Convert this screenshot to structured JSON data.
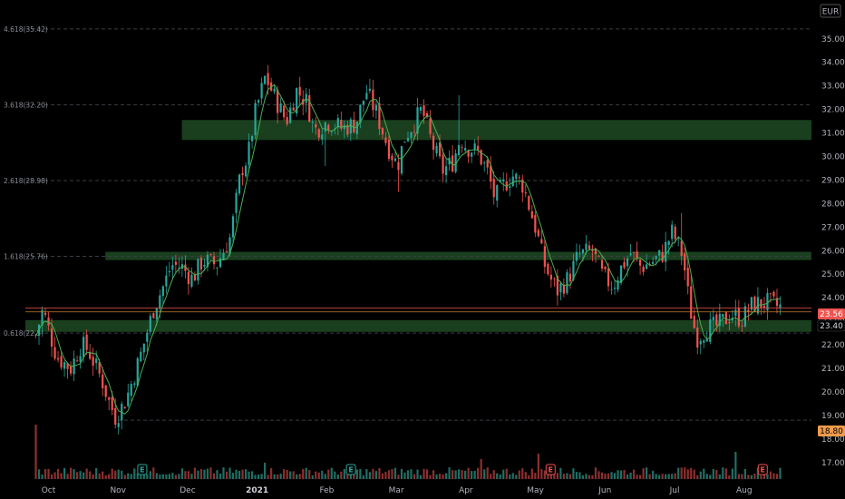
{
  "currency": "EUR",
  "colors": {
    "background": "#000000",
    "up": "#26a69a",
    "down": "#ef5350",
    "up_volume": "#1f6e63",
    "down_volume": "#8c2f2f",
    "zone": "#1e4a23",
    "ma": "#4caf50",
    "price_tag": "#ef5350",
    "level_line": "#c57e2a",
    "grid_dash": "#3a3d45",
    "axis_text": "#b2b5be"
  },
  "price_tags": {
    "last": "23.56",
    "level": "23.40",
    "low": "18.80"
  },
  "earnings_badges": [
    {
      "label": "E",
      "type": "up",
      "time": 1.53
    },
    {
      "label": "E",
      "type": "up",
      "time": 4.53
    },
    {
      "label": "E",
      "type": "down",
      "time": 7.4
    },
    {
      "label": "E",
      "type": "down",
      "time": 10.45
    }
  ],
  "chart_data": {
    "type": "candlestick",
    "instrument_currency": "EUR",
    "y_ticks": [
      "17.00",
      "18.00",
      "19.00",
      "20.00",
      "21.00",
      "22.00",
      "23.00",
      "24.00",
      "25.00",
      "26.00",
      "27.00",
      "28.00",
      "29.00",
      "30.00",
      "31.00",
      "32.00",
      "33.00",
      "34.00",
      "35.00"
    ],
    "ylim": [
      16.8,
      35.8
    ],
    "x_ticks": [
      {
        "label": "Oct",
        "t": 0.0,
        "bold": false
      },
      {
        "label": "Nov",
        "t": 1.0,
        "bold": false
      },
      {
        "label": "Dec",
        "t": 2.0,
        "bold": false
      },
      {
        "label": "2021",
        "t": 3.0,
        "bold": true
      },
      {
        "label": "Feb",
        "t": 4.0,
        "bold": false
      },
      {
        "label": "Mar",
        "t": 5.0,
        "bold": false
      },
      {
        "label": "Apr",
        "t": 6.0,
        "bold": false
      },
      {
        "label": "May",
        "t": 7.0,
        "bold": false
      },
      {
        "label": "Jun",
        "t": 8.0,
        "bold": false
      },
      {
        "label": "Jul",
        "t": 9.0,
        "bold": false
      },
      {
        "label": "Aug",
        "t": 10.0,
        "bold": false
      }
    ],
    "xlim": [
      -0.15,
      11.15
    ],
    "fib_levels": [
      {
        "label": "4.618(35.42)",
        "price": 35.42
      },
      {
        "label": "3.618(32.20)",
        "price": 32.2
      },
      {
        "label": "2.618(28.98)",
        "price": 28.98
      },
      {
        "label": "1.618(25.76)",
        "price": 25.76
      },
      {
        "label": "0.618(22.5)",
        "price": 22.5
      }
    ],
    "zones": [
      {
        "from": 30.7,
        "to": 31.55,
        "t_start": 2.1
      },
      {
        "from": 25.6,
        "to": 25.95,
        "t_start": 1.0
      },
      {
        "from": 22.55,
        "to": 23.05,
        "t_start": -0.15
      }
    ],
    "horizontal_lines": [
      {
        "price": 23.56,
        "kind": "last"
      },
      {
        "price": 23.4,
        "kind": "level"
      }
    ],
    "low_line": 18.8,
    "path_keypoints": [
      [
        0.0,
        22.4
      ],
      [
        0.1,
        23.5
      ],
      [
        0.3,
        21.5
      ],
      [
        0.5,
        21.0
      ],
      [
        0.65,
        22.0
      ],
      [
        0.75,
        21.8
      ],
      [
        0.95,
        20.5
      ],
      [
        1.05,
        19.6
      ],
      [
        1.15,
        18.9
      ],
      [
        1.3,
        19.7
      ],
      [
        1.5,
        21.5
      ],
      [
        1.7,
        23.6
      ],
      [
        1.85,
        24.6
      ],
      [
        1.95,
        25.4
      ],
      [
        2.1,
        25.3
      ],
      [
        2.25,
        24.8
      ],
      [
        2.4,
        25.6
      ],
      [
        2.6,
        25.4
      ],
      [
        2.8,
        26.6
      ],
      [
        2.95,
        29.4
      ],
      [
        3.05,
        30.0
      ],
      [
        3.15,
        31.8
      ],
      [
        3.3,
        33.4
      ],
      [
        3.45,
        32.4
      ],
      [
        3.6,
        31.5
      ],
      [
        3.75,
        32.8
      ],
      [
        3.9,
        32.3
      ],
      [
        4.0,
        31.1
      ],
      [
        4.2,
        31.5
      ],
      [
        4.4,
        31.2
      ],
      [
        4.6,
        31.4
      ],
      [
        4.75,
        32.8
      ],
      [
        4.9,
        31.8
      ],
      [
        5.05,
        30.5
      ],
      [
        5.2,
        29.6
      ],
      [
        5.3,
        30.8
      ],
      [
        5.45,
        31.5
      ],
      [
        5.55,
        32.0
      ],
      [
        5.7,
        30.5
      ],
      [
        5.85,
        29.4
      ],
      [
        6.0,
        29.8
      ],
      [
        6.1,
        30.8
      ],
      [
        6.2,
        30.4
      ],
      [
        6.35,
        30.2
      ],
      [
        6.5,
        29.3
      ],
      [
        6.6,
        28.2
      ],
      [
        6.7,
        28.7
      ],
      [
        6.85,
        29.2
      ],
      [
        7.0,
        28.8
      ],
      [
        7.1,
        27.8
      ],
      [
        7.2,
        26.8
      ],
      [
        7.3,
        25.5
      ],
      [
        7.4,
        24.8
      ],
      [
        7.5,
        24.3
      ],
      [
        7.65,
        24.8
      ],
      [
        7.8,
        25.8
      ],
      [
        8.0,
        26.0
      ],
      [
        8.15,
        24.9
      ],
      [
        8.3,
        24.5
      ],
      [
        8.4,
        25.2
      ],
      [
        8.55,
        25.9
      ],
      [
        8.7,
        25.3
      ],
      [
        8.85,
        25.5
      ],
      [
        9.0,
        25.8
      ],
      [
        9.15,
        26.8
      ],
      [
        9.3,
        25.8
      ],
      [
        9.4,
        23.6
      ],
      [
        9.5,
        22.3
      ],
      [
        9.65,
        22.7
      ],
      [
        9.8,
        22.8
      ],
      [
        10.0,
        23.3
      ],
      [
        10.15,
        23.1
      ],
      [
        10.3,
        23.7
      ],
      [
        10.5,
        23.8
      ],
      [
        10.7,
        23.6
      ]
    ],
    "spikes": [
      {
        "t": 6.08,
        "high": 32.6
      },
      {
        "t": 4.17,
        "low": 29.6
      },
      {
        "t": 5.2,
        "low": 28.5
      },
      {
        "t": 9.3,
        "high": 27.6
      },
      {
        "t": 9.56,
        "low": 21.6
      },
      {
        "t": 1.15,
        "low": 18.45
      }
    ]
  }
}
